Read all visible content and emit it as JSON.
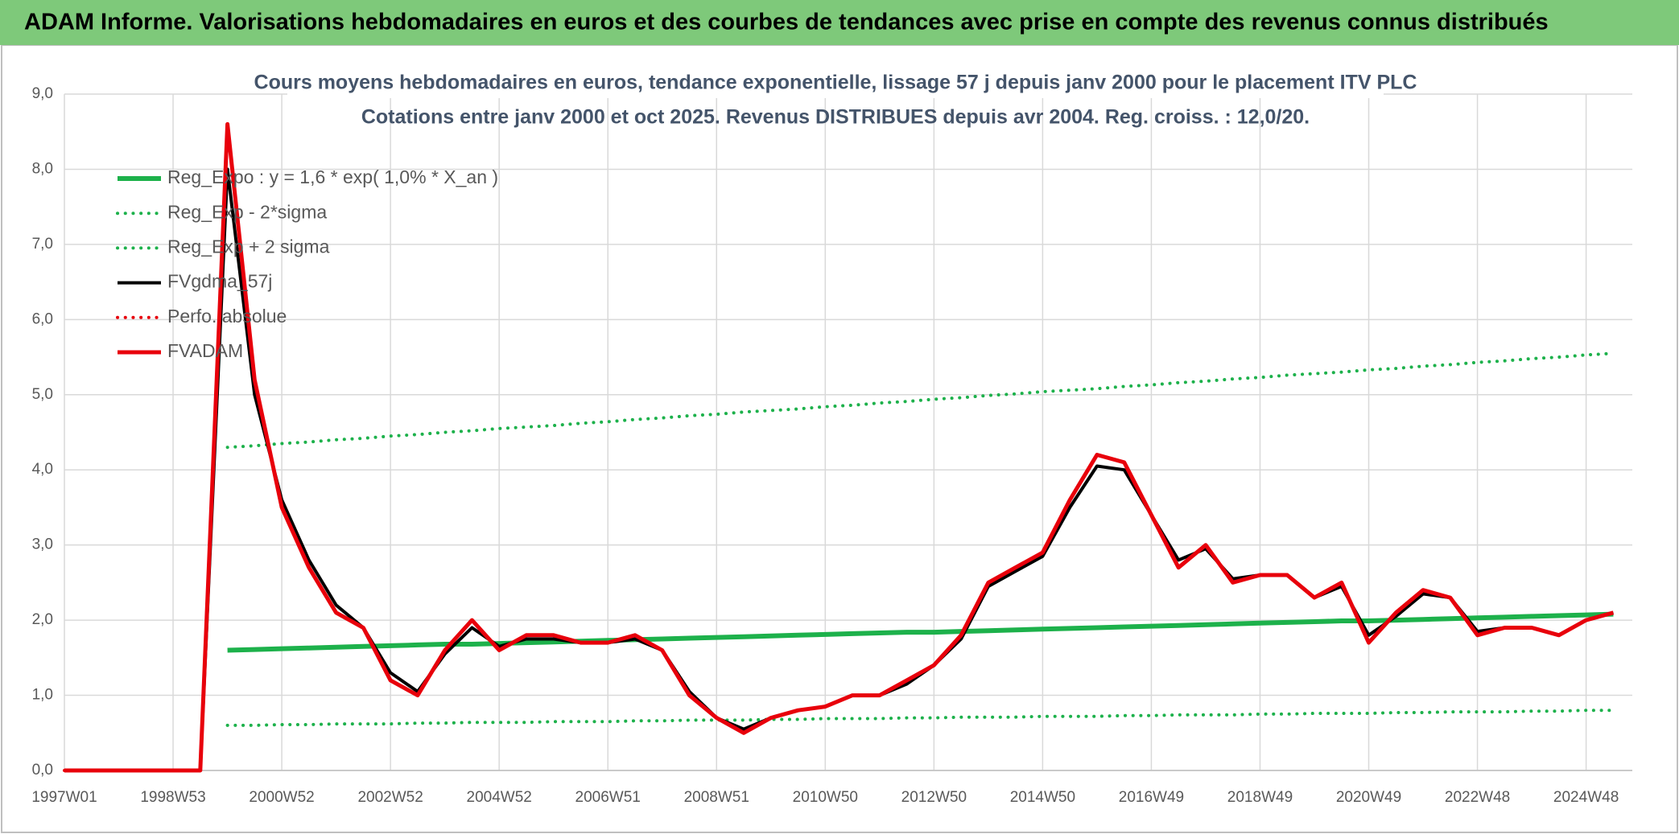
{
  "chart_data": {
    "type": "line",
    "header": "ADAM Informe. Valorisations hebdomadaires en euros et des courbes de tendances avec prise en compte des revenus connus distribués",
    "title": "Cours moyens hebdomadaires en euros, tendance exponentielle, lissage 57 j depuis janv 2000 pour le placement ITV PLC",
    "subtitle": "Cotations entre janv 2000 et oct 2025. Revenus DISTRIBUES depuis avr 2004. Reg. croiss. : 12,0/20.",
    "categories": [
      "1997W01",
      null,
      null,
      null,
      "1998W53",
      null,
      null,
      null,
      "2000W52",
      null,
      null,
      null,
      "2002W52",
      null,
      null,
      null,
      "2004W52",
      null,
      null,
      null,
      "2006W51",
      null,
      null,
      null,
      "2008W51",
      null,
      null,
      null,
      "2010W50",
      null,
      null,
      null,
      "2012W50",
      null,
      null,
      null,
      "2014W50",
      null,
      null,
      null,
      "2016W49",
      null,
      null,
      null,
      "2018W49",
      null,
      null,
      null,
      "2020W49",
      null,
      null,
      null,
      "2022W48",
      null,
      null,
      null,
      "2024W48",
      null
    ],
    "ylim": [
      0,
      9
    ],
    "yticks": [
      {
        "value": 0,
        "label": "0,0"
      },
      {
        "value": 1,
        "label": "1,0"
      },
      {
        "value": 2,
        "label": "2,0"
      },
      {
        "value": 3,
        "label": "3,0"
      },
      {
        "value": 4,
        "label": "4,0"
      },
      {
        "value": 5,
        "label": "5,0"
      },
      {
        "value": 6,
        "label": "6,0"
      },
      {
        "value": 7,
        "label": "7,0"
      },
      {
        "value": 8,
        "label": "8,0"
      },
      {
        "value": 9,
        "label": "9,0"
      }
    ],
    "grid": true,
    "legend": "top-left",
    "series": [
      {
        "name": "Reg_Expo : y = 1,6 * exp( 1,0% *  X_an )",
        "color": "#1db14b",
        "style": "solid",
        "width": 6,
        "values": [
          null,
          null,
          null,
          null,
          null,
          null,
          1.6,
          1.61,
          1.62,
          1.63,
          1.64,
          1.65,
          1.66,
          1.67,
          1.68,
          1.68,
          1.69,
          1.7,
          1.71,
          1.72,
          1.73,
          1.74,
          1.75,
          1.76,
          1.77,
          1.78,
          1.79,
          1.8,
          1.81,
          1.82,
          1.83,
          1.84,
          1.84,
          1.85,
          1.86,
          1.87,
          1.88,
          1.89,
          1.9,
          1.91,
          1.92,
          1.93,
          1.94,
          1.95,
          1.96,
          1.97,
          1.98,
          1.99,
          1.99,
          2.0,
          2.01,
          2.02,
          2.03,
          2.04,
          2.05,
          2.06,
          2.07,
          2.08
        ]
      },
      {
        "name": "Reg_Exp - 2*sigma",
        "color": "#1db14b",
        "style": "dotted",
        "width": 4,
        "values": [
          null,
          null,
          null,
          null,
          null,
          null,
          0.6,
          0.6,
          0.61,
          0.61,
          0.62,
          0.62,
          0.62,
          0.63,
          0.63,
          0.64,
          0.64,
          0.64,
          0.65,
          0.65,
          0.65,
          0.66,
          0.66,
          0.67,
          0.67,
          0.67,
          0.68,
          0.68,
          0.69,
          0.69,
          0.69,
          0.7,
          0.7,
          0.71,
          0.71,
          0.71,
          0.72,
          0.72,
          0.72,
          0.73,
          0.73,
          0.74,
          0.74,
          0.74,
          0.75,
          0.75,
          0.76,
          0.76,
          0.76,
          0.77,
          0.77,
          0.78,
          0.78,
          0.78,
          0.79,
          0.79,
          0.8,
          0.8
        ]
      },
      {
        "name": "Reg_Exp + 2 sigma",
        "color": "#1db14b",
        "style": "dotted",
        "width": 4,
        "values": [
          null,
          null,
          null,
          null,
          null,
          null,
          4.3,
          4.32,
          4.35,
          4.37,
          4.4,
          4.42,
          4.45,
          4.47,
          4.5,
          4.52,
          4.55,
          4.57,
          4.59,
          4.62,
          4.64,
          4.67,
          4.69,
          4.72,
          4.74,
          4.77,
          4.79,
          4.81,
          4.84,
          4.86,
          4.89,
          4.91,
          4.94,
          4.96,
          4.99,
          5.01,
          5.04,
          5.06,
          5.08,
          5.11,
          5.13,
          5.16,
          5.18,
          5.21,
          5.23,
          5.26,
          5.28,
          5.3,
          5.33,
          5.35,
          5.38,
          5.4,
          5.43,
          5.45,
          5.48,
          5.5,
          5.53,
          5.55
        ]
      },
      {
        "name": "FVgdma_57j",
        "color": "#000000",
        "style": "solid",
        "width": 4,
        "values": [
          0,
          0,
          0,
          0,
          0,
          0,
          8.0,
          5.0,
          3.6,
          2.8,
          2.2,
          1.9,
          1.3,
          1.05,
          1.55,
          1.9,
          1.65,
          1.75,
          1.75,
          1.7,
          1.7,
          1.75,
          1.6,
          1.05,
          0.7,
          0.55,
          0.7,
          0.8,
          0.85,
          1.0,
          1.0,
          1.15,
          1.4,
          1.75,
          2.45,
          2.65,
          2.85,
          3.5,
          4.05,
          4.0,
          3.4,
          2.8,
          2.95,
          2.55,
          2.6,
          2.6,
          2.3,
          2.45,
          1.8,
          2.05,
          2.35,
          2.3,
          1.85,
          1.9,
          1.9,
          1.8,
          2.0,
          2.1
        ]
      },
      {
        "name": "Perfo. absolue",
        "color": "#e8000b",
        "style": "dotted",
        "width": 4,
        "values": [
          0,
          0,
          0,
          0,
          0,
          0,
          8.6,
          5.2,
          3.5,
          2.7,
          2.1,
          1.9,
          1.2,
          1.0,
          1.6,
          2.0,
          1.6,
          1.8,
          1.8,
          1.7,
          1.7,
          1.8,
          1.6,
          1.0,
          0.7,
          0.5,
          0.7,
          0.8,
          0.85,
          1.0,
          1.0,
          1.2,
          1.4,
          1.8,
          2.5,
          2.7,
          2.9,
          3.6,
          4.2,
          4.1,
          3.4,
          2.7,
          3.0,
          2.5,
          2.6,
          2.6,
          2.3,
          2.5,
          1.7,
          2.1,
          2.4,
          2.3,
          1.8,
          1.9,
          1.9,
          1.8,
          2.0,
          2.1
        ]
      },
      {
        "name": "FVADAM",
        "color": "#e8000b",
        "style": "solid",
        "width": 5,
        "values": [
          0,
          0,
          0,
          0,
          0,
          0,
          8.6,
          5.2,
          3.5,
          2.7,
          2.1,
          1.9,
          1.2,
          1.0,
          1.6,
          2.0,
          1.6,
          1.8,
          1.8,
          1.7,
          1.7,
          1.8,
          1.6,
          1.0,
          0.7,
          0.5,
          0.7,
          0.8,
          0.85,
          1.0,
          1.0,
          1.2,
          1.4,
          1.8,
          2.5,
          2.7,
          2.9,
          3.6,
          4.2,
          4.1,
          3.4,
          2.7,
          3.0,
          2.5,
          2.6,
          2.6,
          2.3,
          2.5,
          1.7,
          2.1,
          2.4,
          2.3,
          1.8,
          1.9,
          1.9,
          1.8,
          2.0,
          2.1
        ]
      }
    ]
  }
}
